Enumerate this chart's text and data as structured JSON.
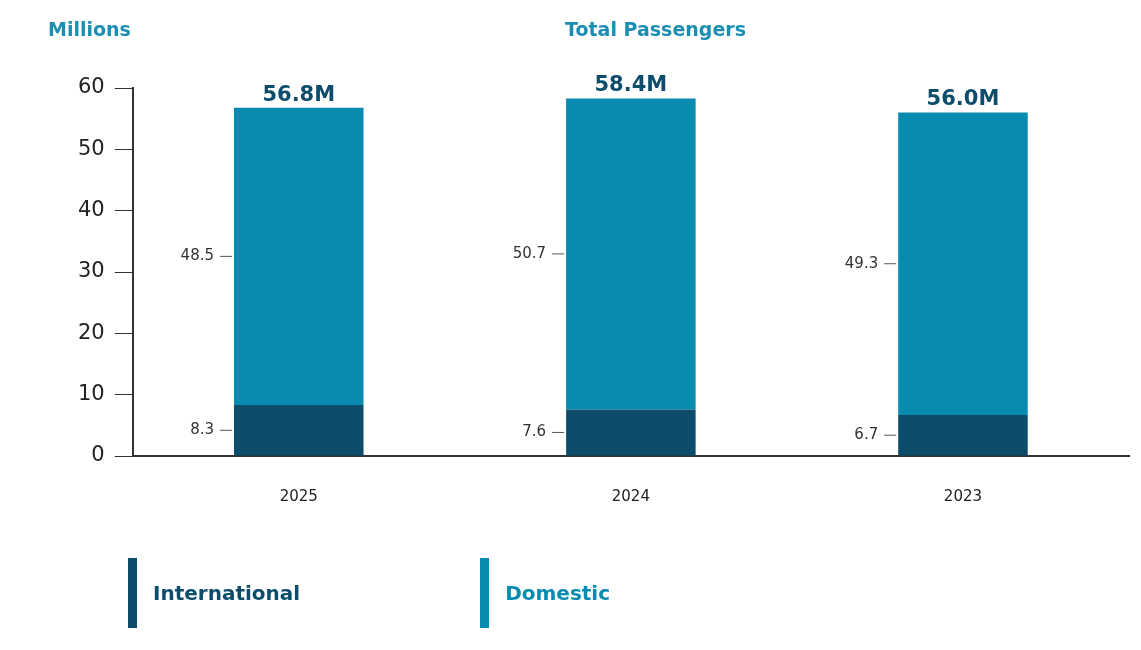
{
  "chart_data": {
    "type": "bar",
    "title": "Total Passengers",
    "ylabel": "Millions",
    "categories": [
      "2025",
      "2024",
      "2023"
    ],
    "stacked": true,
    "series": [
      {
        "name": "International",
        "color": "#0b4d6b",
        "values": [
          8.3,
          7.6,
          6.7
        ]
      },
      {
        "name": "Domestic",
        "color": "#078bb0",
        "values": [
          48.5,
          50.7,
          49.3
        ]
      }
    ],
    "totals": [
      "56.8M",
      "58.4M",
      "56.0M"
    ],
    "data_labels": true,
    "ylim": [
      0,
      60
    ],
    "yticks": [
      0,
      10,
      20,
      30,
      40,
      50,
      60
    ],
    "grid": false,
    "legend": "bottom"
  }
}
